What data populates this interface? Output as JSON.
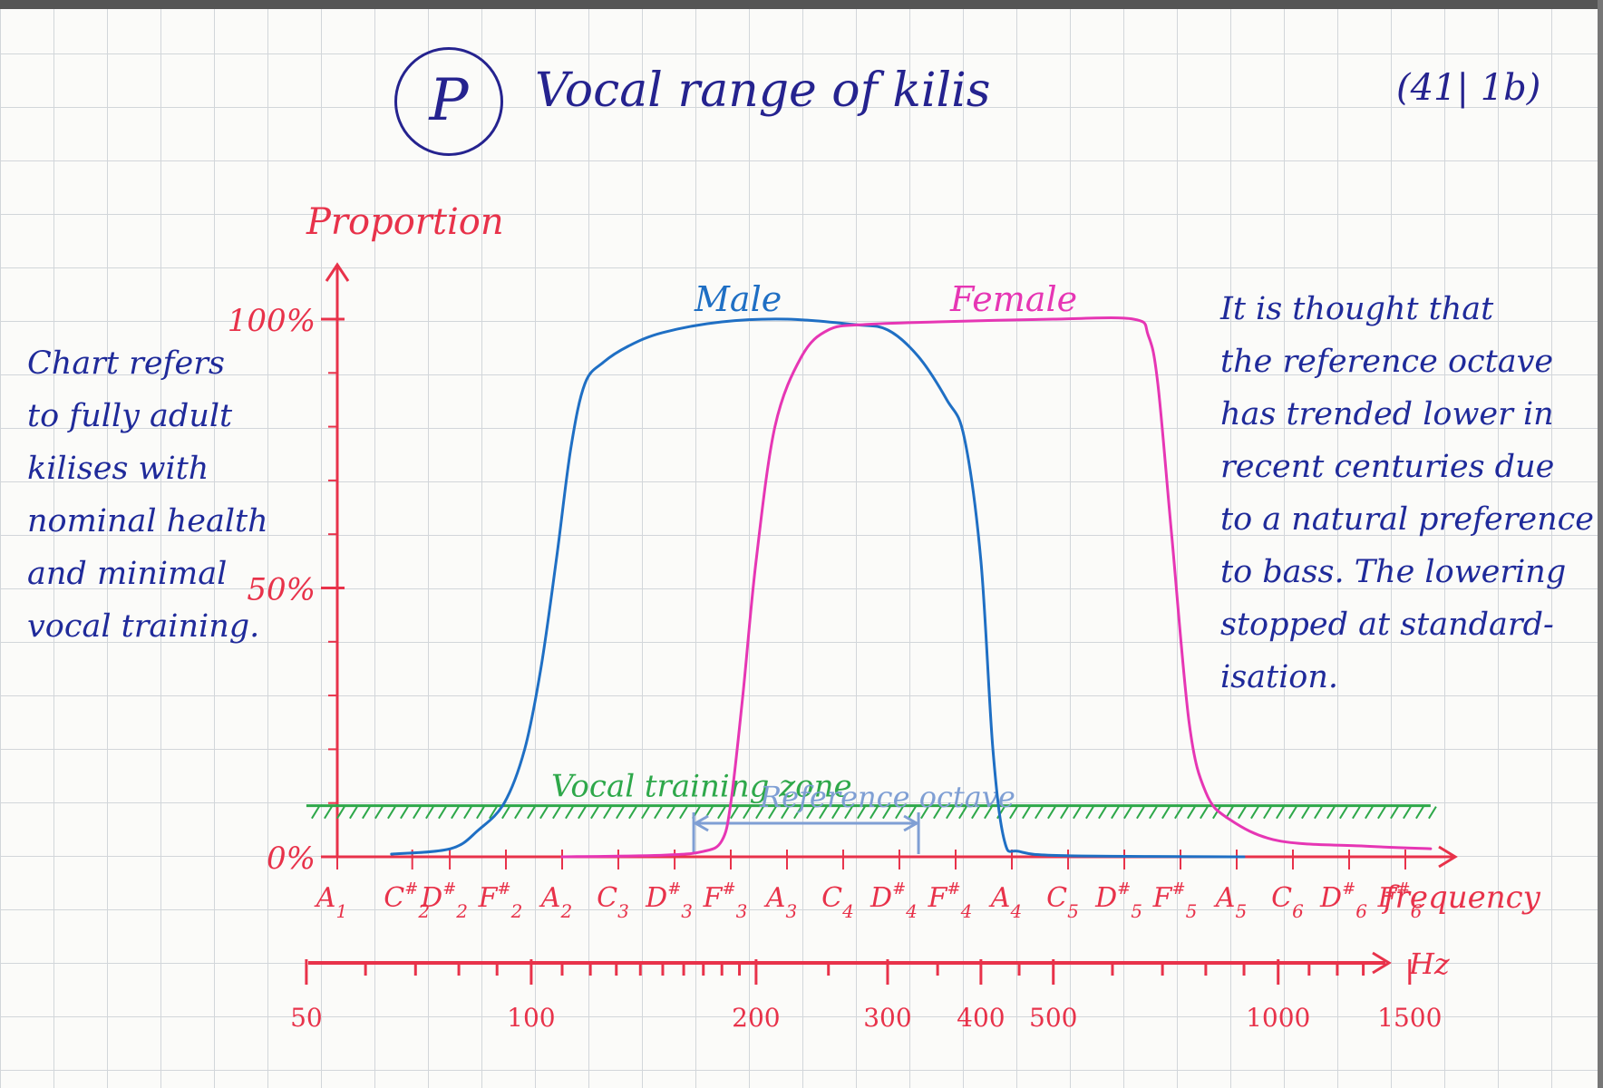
{
  "title": {
    "logo_letter": "P",
    "text": "Vocal range of kilis",
    "code": "(41| 1b)"
  },
  "notes": {
    "left": [
      "Chart refers",
      "to fully adult",
      "kilises with",
      "nominal health",
      "and minimal",
      "vocal training."
    ],
    "right": [
      "It is thought that",
      "the reference octave",
      "has trended lower in",
      "recent centuries due",
      "to a natural preference",
      "to bass. The lowering",
      "stopped at standard-",
      "isation."
    ]
  },
  "colors": {
    "axis": "#e8324a",
    "male": "#1f6fc4",
    "female": "#e636b4",
    "training": "#2ea84a",
    "reference": "#7f9fd4",
    "ink": "#25238f",
    "note": "#1f2a9a"
  },
  "chart_data": {
    "type": "line",
    "ylabel": "Proportion",
    "xlabel": "frequency",
    "ylim": [
      0,
      100
    ],
    "y_ticks": [
      {
        "value": 0,
        "label": "0%"
      },
      {
        "value": 50,
        "label": "50%"
      },
      {
        "value": 100,
        "label": "100%"
      }
    ],
    "note_ticks": [
      {
        "note": "A",
        "sub": "1",
        "acc": "",
        "hz": 55
      },
      {
        "note": "C",
        "sub": "2",
        "acc": "#",
        "hz": 69.3
      },
      {
        "note": "D",
        "sub": "2",
        "acc": "#",
        "hz": 77.8
      },
      {
        "note": "F",
        "sub": "2",
        "acc": "#",
        "hz": 92.5
      },
      {
        "note": "A",
        "sub": "2",
        "acc": "",
        "hz": 110
      },
      {
        "note": "C",
        "sub": "3",
        "acc": "",
        "hz": 130.8
      },
      {
        "note": "D",
        "sub": "3",
        "acc": "#",
        "hz": 155.6
      },
      {
        "note": "F",
        "sub": "3",
        "acc": "#",
        "hz": 185
      },
      {
        "note": "A",
        "sub": "3",
        "acc": "",
        "hz": 220
      },
      {
        "note": "C",
        "sub": "4",
        "acc": "",
        "hz": 261.6
      },
      {
        "note": "D",
        "sub": "4",
        "acc": "#",
        "hz": 311.1
      },
      {
        "note": "F",
        "sub": "4",
        "acc": "#",
        "hz": 370
      },
      {
        "note": "A",
        "sub": "4",
        "acc": "",
        "hz": 440
      },
      {
        "note": "C",
        "sub": "5",
        "acc": "",
        "hz": 523.3
      },
      {
        "note": "D",
        "sub": "5",
        "acc": "#",
        "hz": 622.3
      },
      {
        "note": "F",
        "sub": "5",
        "acc": "#",
        "hz": 740
      },
      {
        "note": "A",
        "sub": "5",
        "acc": "",
        "hz": 880
      },
      {
        "note": "C",
        "sub": "6",
        "acc": "",
        "hz": 1046.5
      },
      {
        "note": "D",
        "sub": "6",
        "acc": "#",
        "hz": 1244.5
      },
      {
        "note": "F",
        "sub": "6",
        "acc": "#",
        "hz": 1480
      }
    ],
    "hz_axis": {
      "label": "Hz",
      "tick_labels": [
        50,
        100,
        200,
        300,
        400,
        500,
        1000,
        1500
      ]
    },
    "series": [
      {
        "name": "Male",
        "points": [
          [
            65,
            0.5
          ],
          [
            78,
            1.5
          ],
          [
            85,
            5
          ],
          [
            92,
            10
          ],
          [
            98,
            20
          ],
          [
            103,
            35
          ],
          [
            108,
            55
          ],
          [
            113,
            76
          ],
          [
            118,
            88
          ],
          [
            125,
            92
          ],
          [
            135,
            95
          ],
          [
            150,
            97.5
          ],
          [
            180,
            99.5
          ],
          [
            220,
            100
          ],
          [
            270,
            99
          ],
          [
            300,
            98
          ],
          [
            330,
            93
          ],
          [
            360,
            85
          ],
          [
            380,
            78
          ],
          [
            400,
            55
          ],
          [
            415,
            20
          ],
          [
            430,
            3
          ],
          [
            450,
            1
          ],
          [
            520,
            0.2
          ],
          [
            900,
            0
          ]
        ]
      },
      {
        "name": "Female",
        "points": [
          [
            110,
            0
          ],
          [
            150,
            0.3
          ],
          [
            170,
            1
          ],
          [
            180,
            3
          ],
          [
            185,
            10
          ],
          [
            192,
            30
          ],
          [
            200,
            55
          ],
          [
            212,
            80
          ],
          [
            230,
            93
          ],
          [
            250,
            98
          ],
          [
            280,
            99
          ],
          [
            350,
            99.5
          ],
          [
            500,
            100
          ],
          [
            640,
            100
          ],
          [
            670,
            97
          ],
          [
            690,
            88
          ],
          [
            720,
            60
          ],
          [
            760,
            25
          ],
          [
            800,
            12
          ],
          [
            860,
            7
          ],
          [
            1000,
            3
          ],
          [
            1300,
            2
          ],
          [
            1600,
            1.5
          ]
        ]
      }
    ],
    "annotations": {
      "vocal_training": {
        "label": "Vocal training zone",
        "y": 9.5,
        "x_from_hz": 50,
        "x_to_hz": 1600
      },
      "reference_octave": {
        "label": "Reference octave",
        "from_hz": 165,
        "to_hz": 330
      }
    }
  }
}
